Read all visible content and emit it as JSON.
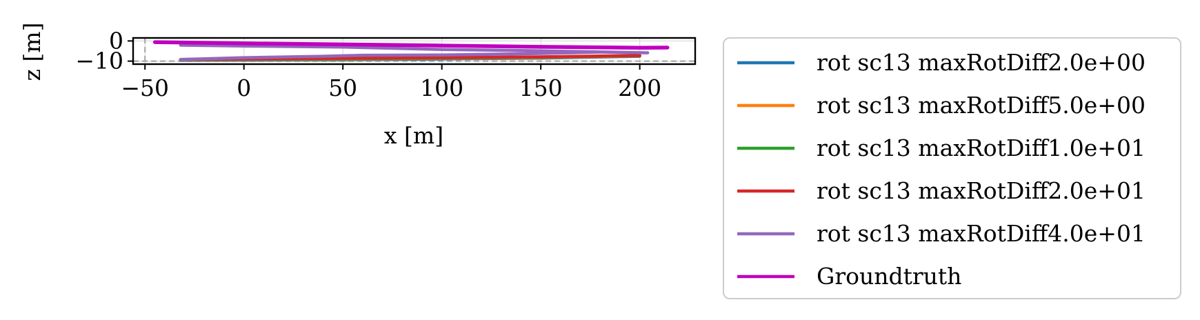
{
  "chart_data": {
    "type": "line",
    "xlabel": "x [m]",
    "ylabel": "z [m]",
    "xlim": [
      -56,
      228
    ],
    "ylim": [
      -11.5,
      1.5
    ],
    "xticks": [
      -50,
      0,
      50,
      100,
      150,
      200
    ],
    "xtick_labels": [
      "−50",
      "0",
      "50",
      "100",
      "150",
      "200"
    ],
    "yticks": [
      0,
      -10
    ],
    "ytick_labels": [
      "0",
      "−10"
    ],
    "grid": true,
    "reference_lines": {
      "x": -50,
      "y": -10
    },
    "legend_position": "outside-right",
    "series": [
      {
        "name": "rot sc13 maxRotDiff2.0e+00",
        "color": "#1f77b4",
        "x": [
          -32,
          0,
          50,
          100,
          150,
          200
        ],
        "y": [
          -9.6,
          -9.5,
          -9.3,
          -8.9,
          -8.5,
          -7.6
        ]
      },
      {
        "name": "rot sc13 maxRotDiff5.0e+00",
        "color": "#ff7f0e",
        "x": [
          -32,
          0,
          50,
          100,
          150,
          200
        ],
        "y": [
          -9.4,
          -9.2,
          -9.0,
          -8.6,
          -8.2,
          -7.4
        ]
      },
      {
        "name": "rot sc13 maxRotDiff1.0e+01",
        "color": "#2ca02c",
        "x": [
          -32,
          0,
          50,
          100,
          150,
          200
        ],
        "y": [
          -9.3,
          -9.0,
          -8.8,
          -8.5,
          -8.0,
          -7.3
        ]
      },
      {
        "name": "rot sc13 maxRotDiff2.0e+01",
        "color": "#d62728",
        "x": [
          -32,
          0,
          50,
          100,
          150,
          200
        ],
        "y": [
          -9.2,
          -8.9,
          -8.6,
          -8.3,
          -7.9,
          -7.2
        ]
      },
      {
        "name": "rot sc13 maxRotDiff4.0e+01",
        "color": "#9467bd",
        "x": [
          -32,
          0,
          40,
          60,
          100,
          150,
          180,
          204,
          150,
          100,
          50,
          0,
          -32
        ],
        "y": [
          -9.2,
          -8.3,
          -7.6,
          -7.1,
          -7.0,
          -6.2,
          -5.5,
          -5.9,
          -4.9,
          -4.2,
          -3.0,
          -2.5,
          -2.1
        ]
      },
      {
        "name": "Groundtruth",
        "color": "#bf00bf",
        "x": [
          -45,
          0,
          50,
          100,
          150,
          200,
          214
        ],
        "y": [
          -0.6,
          -1.2,
          -1.7,
          -2.3,
          -2.9,
          -3.4,
          -3.3
        ]
      }
    ]
  }
}
